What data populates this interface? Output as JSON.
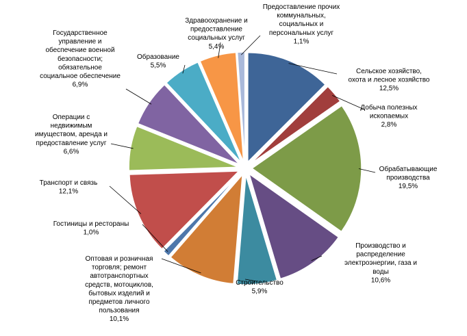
{
  "chart_data": {
    "type": "pie",
    "title": "",
    "exploded": true,
    "legend": "none",
    "slices": [
      {
        "label": [
          "Сельское хозяйство,",
          "охота и лесное хозяйство"
        ],
        "value": 12.5,
        "value_label": "12,5%",
        "color": "#3E6597"
      },
      {
        "label": [
          "Добыча полезных",
          "ископаемых"
        ],
        "value": 2.8,
        "value_label": "2,8%",
        "color": "#A13E3C"
      },
      {
        "label": [
          "Обрабатывающие",
          "производства"
        ],
        "value": 19.5,
        "value_label": "19,5%",
        "color": "#7D9B48"
      },
      {
        "label": [
          "Производство и",
          "распределение",
          "электроэнергии,  газа и",
          "воды"
        ],
        "value": 10.6,
        "value_label": "10,6%",
        "color": "#664D84"
      },
      {
        "label": [
          "Строительство"
        ],
        "value": 5.9,
        "value_label": "5,9%",
        "color": "#3C8BA0"
      },
      {
        "label": [
          "Оптовая и розничная",
          "торговля;  ремонт",
          "автотранспортных",
          "средств, мотоциклов,",
          "бытовых изделий и",
          "предметов личного",
          "пользования"
        ],
        "value": 10.1,
        "value_label": "10,1%",
        "color": "#D17D35"
      },
      {
        "label": [
          "Гостиницы и рестораны"
        ],
        "value": 1.0,
        "value_label": "1,0%",
        "color": "#4D77AB"
      },
      {
        "label": [
          "Транспорт  и связь"
        ],
        "value": 12.1,
        "value_label": "12,1%",
        "color": "#C14E4B"
      },
      {
        "label": [
          "Операции с",
          "недвижимым",
          "имуществом, аренда и",
          "предоставление услуг"
        ],
        "value": 6.6,
        "value_label": "6,6%",
        "color": "#9BBB59"
      },
      {
        "label": [
          "Государственное",
          "управление и",
          "обеспечение военной",
          "безопасности;",
          "обязательное",
          "социальное обеспечение"
        ],
        "value": 6.9,
        "value_label": "6,9%",
        "color": "#8064A2"
      },
      {
        "label": [
          "Образование"
        ],
        "value": 5.5,
        "value_label": "5,5%",
        "color": "#4BACC6"
      },
      {
        "label": [
          "Здравоохранение и",
          "предоставление",
          "социальных услуг"
        ],
        "value": 5.4,
        "value_label": "5,4%",
        "color": "#F79646"
      },
      {
        "label": [
          "Предоставление прочих",
          "коммунальных,",
          "социальных и",
          "персональных услуг"
        ],
        "value": 1.1,
        "value_label": "1,1%",
        "color": "#A9B9DA"
      }
    ]
  }
}
